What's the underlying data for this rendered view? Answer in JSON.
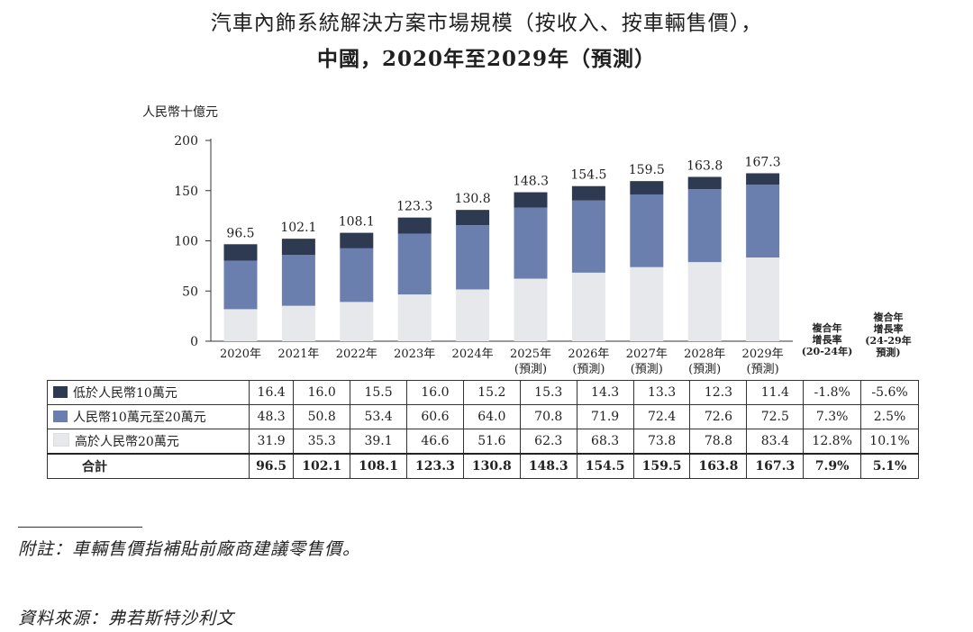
{
  "title_line1": "汽車內飾系統解決方案市場規模（按收入、按車輛售價），",
  "title_line2": "中國，2020年至2029年（預測）",
  "unit_label": "人民幣十億元",
  "cagr_headers": [
    [
      "複合年",
      "增長率",
      "(20-24年)"
    ],
    [
      "複合年",
      "增長率",
      "(24-29年",
      "預測)"
    ]
  ],
  "table": {
    "rows": [
      {
        "label": "低於人民幣10萬元",
        "values": [
          "16.4",
          "16.0",
          "15.5",
          "16.0",
          "15.2",
          "15.3",
          "14.3",
          "13.3",
          "12.3",
          "11.4"
        ],
        "cagr1": "-1.8%",
        "cagr2": "-5.6%"
      },
      {
        "label": "人民幣10萬元至20萬元",
        "values": [
          "48.3",
          "50.8",
          "53.4",
          "60.6",
          "64.0",
          "70.8",
          "71.9",
          "72.4",
          "72.6",
          "72.5"
        ],
        "cagr1": "7.3%",
        "cagr2": "2.5%"
      },
      {
        "label": "高於人民幣20萬元",
        "values": [
          "31.9",
          "35.3",
          "39.1",
          "46.6",
          "51.6",
          "62.3",
          "68.3",
          "73.8",
          "78.8",
          "83.4"
        ],
        "cagr1": "12.8%",
        "cagr2": "10.1%"
      }
    ],
    "total": {
      "label": "合計",
      "values": [
        "96.5",
        "102.1",
        "108.1",
        "123.3",
        "130.8",
        "148.3",
        "154.5",
        "159.5",
        "163.8",
        "167.3"
      ],
      "cagr1": "7.9%",
      "cagr2": "5.1%"
    }
  },
  "footnote": "附註：車輛售價指補貼前廠商建議零售價。",
  "source": "資料來源：弗若斯特沙利文",
  "chart_data": {
    "type": "bar",
    "stacked": true,
    "categories": [
      "2020年",
      "2021年",
      "2022年",
      "2023年",
      "2024年",
      "2025年",
      "2026年",
      "2027年",
      "2028年",
      "2029年"
    ],
    "category_sublabels": [
      "",
      "",
      "",
      "",
      "",
      "(預測)",
      "(預測)",
      "(預測)",
      "(預測)",
      "(預測)"
    ],
    "series": [
      {
        "name": "高於人民幣20萬元",
        "color": "#e6e8ec",
        "values": [
          31.9,
          35.3,
          39.1,
          46.6,
          51.6,
          62.3,
          68.3,
          73.8,
          78.8,
          83.4
        ]
      },
      {
        "name": "人民幣10萬元至20萬元",
        "color": "#6a7fae",
        "values": [
          48.3,
          50.8,
          53.4,
          60.6,
          64.0,
          70.8,
          71.9,
          72.4,
          72.6,
          72.5
        ]
      },
      {
        "name": "低於人民幣10萬元",
        "color": "#2e3a52",
        "values": [
          16.4,
          16.0,
          15.5,
          16.0,
          15.2,
          15.3,
          14.3,
          13.3,
          12.3,
          11.4
        ]
      }
    ],
    "totals": [
      96.5,
      102.1,
      108.1,
      123.3,
      130.8,
      148.3,
      154.5,
      159.5,
      163.8,
      167.3
    ],
    "yticks": [
      0,
      50,
      100,
      150,
      200
    ],
    "ylim": [
      0,
      200
    ],
    "ylabel": "人民幣十億元",
    "grid": false
  }
}
